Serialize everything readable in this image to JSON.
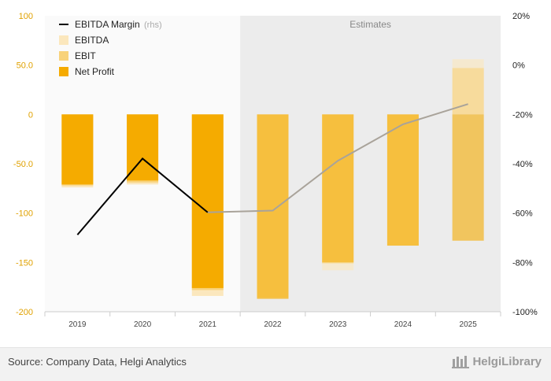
{
  "chart_data": {
    "type": "bar",
    "categories": [
      "2019",
      "2020",
      "2021",
      "2022",
      "2023",
      "2024",
      "2025"
    ],
    "estimates_from": "2022",
    "estimates_label": "Estimates",
    "series": [
      {
        "name": "EBITDA",
        "values": [
          -74,
          -71,
          -184,
          -186,
          -158,
          -133,
          56
        ],
        "color": "#fbe7bd"
      },
      {
        "name": "EBIT",
        "values": [
          -72,
          -69,
          -178,
          -186,
          -151,
          -133,
          47
        ],
        "color": "#f8d27a"
      },
      {
        "name": "Net Profit",
        "values": [
          -71,
          -67,
          -176,
          -187,
          -150,
          -133,
          -128
        ],
        "color": "#f5ab00"
      }
    ],
    "line_series": {
      "name": "EBITDA Margin",
      "note": "(rhs)",
      "values": [
        -68.8,
        -37.9,
        -59.7,
        -59.0,
        -38.8,
        -24.0,
        -15.8
      ],
      "color_actual": "#000000",
      "color_estimate": "#a9a39a"
    },
    "y_left": {
      "ylim": [
        -200,
        100
      ],
      "ticks": [
        "100",
        "50.0",
        "0",
        "-50.0",
        "-100",
        "-150",
        "-200"
      ]
    },
    "y_right": {
      "ylim": [
        -100,
        20
      ],
      "ticks": [
        "20%",
        "0%",
        "-20%",
        "-40%",
        "-60%",
        "-80%",
        "-100%"
      ]
    },
    "legend": {
      "position": "top-left"
    },
    "grid": false
  },
  "footer": {
    "source": "Source: Company Data, Helgi Analytics",
    "brand": "HelgiLibrary"
  }
}
